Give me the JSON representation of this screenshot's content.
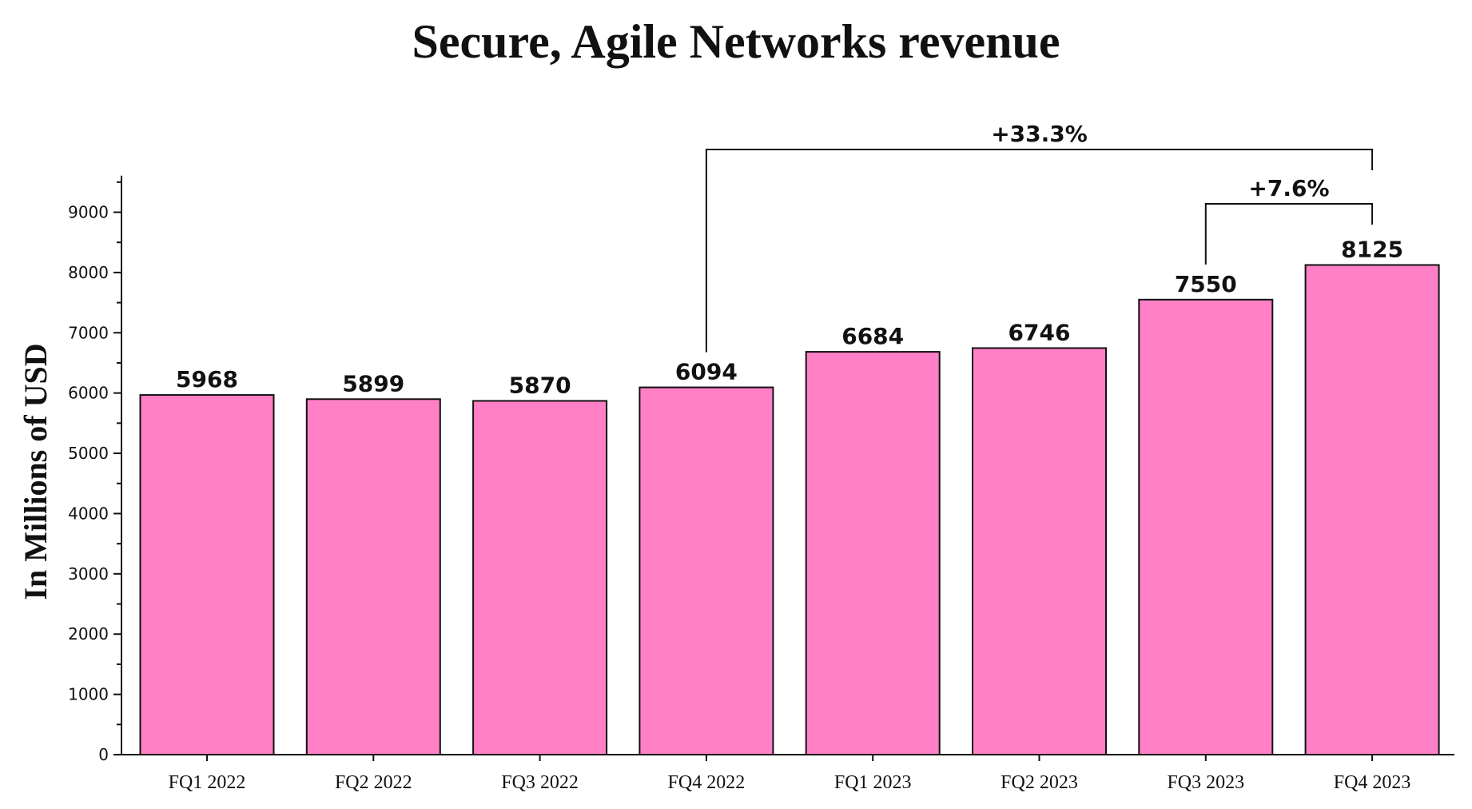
{
  "chart_data": {
    "type": "bar",
    "title": "Secure, Agile Networks revenue",
    "xlabel": "",
    "ylabel": "In Millions of USD",
    "categories": [
      "FQ1 2022",
      "FQ2 2022",
      "FQ3 2022",
      "FQ4 2022",
      "FQ1 2023",
      "FQ2 2023",
      "FQ3 2023",
      "FQ4 2023"
    ],
    "values": [
      5968,
      5899,
      5870,
      6094,
      6684,
      6746,
      7550,
      8125
    ],
    "value_labels": [
      "5968",
      "5899",
      "5870",
      "6094",
      "6684",
      "6746",
      "7550",
      "8125"
    ],
    "ylim": [
      0,
      9500
    ],
    "yticks": [
      0,
      1000,
      2000,
      3000,
      4000,
      5000,
      6000,
      7000,
      8000,
      9000
    ],
    "ytick_labels": [
      "0",
      "1000",
      "2000",
      "3000",
      "4000",
      "5000",
      "6000",
      "7000",
      "8000",
      "9000"
    ],
    "grid": false,
    "bar_color": "#ff80c6",
    "edge_color": "#111111",
    "annotations": [
      {
        "from_index": 3,
        "to_index": 7,
        "label": "+33.3%"
      },
      {
        "from_index": 6,
        "to_index": 7,
        "label": "+7.6%"
      }
    ]
  }
}
